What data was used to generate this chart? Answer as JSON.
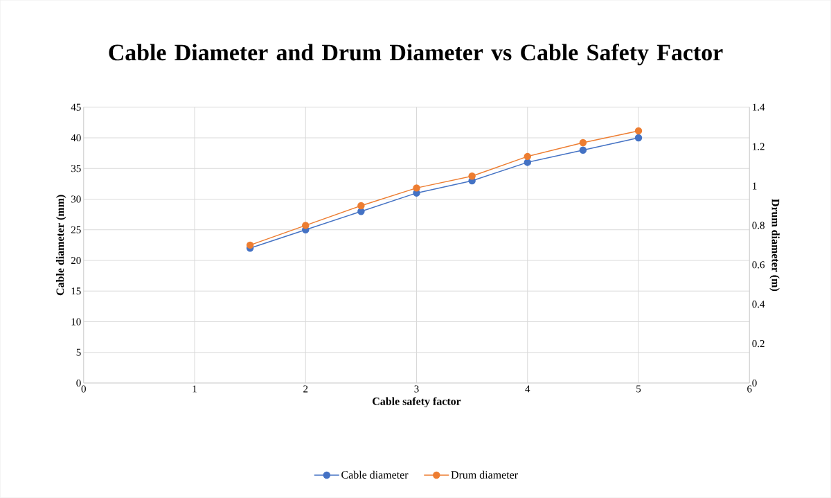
{
  "chart_data": {
    "type": "line",
    "title": "Cable Diameter and Drum Diameter vs Cable Safety Factor",
    "xlabel": "Cable safety factor",
    "ylabel": "Cable diameter (mm)",
    "y2label": "Drum diameter (m)",
    "x": [
      1.5,
      2,
      2.5,
      3,
      3.5,
      4,
      4.5,
      5
    ],
    "series": [
      {
        "name": "Cable diameter",
        "color": "#4472c4",
        "values": [
          22,
          25,
          28,
          31,
          33,
          36,
          38,
          40
        ]
      },
      {
        "name": "Drum diameter",
        "color": "#ed7d31",
        "axis": "y2",
        "values": [
          0.7,
          0.8,
          0.9,
          0.99,
          1.05,
          1.15,
          1.22,
          1.28
        ]
      }
    ],
    "xlim": [
      0,
      6
    ],
    "xticks": [
      0,
      1,
      2,
      3,
      4,
      5,
      6
    ],
    "ylim": [
      0,
      45
    ],
    "yticks": [
      0,
      5,
      10,
      15,
      20,
      25,
      30,
      35,
      40,
      45
    ],
    "y2lim": [
      0,
      1.4
    ],
    "y2ticks": [
      0,
      0.2,
      0.4,
      0.6,
      0.8,
      1,
      1.2,
      1.4
    ],
    "grid": true,
    "legend": "bottom",
    "marker": "circle",
    "line_style": "solid"
  }
}
